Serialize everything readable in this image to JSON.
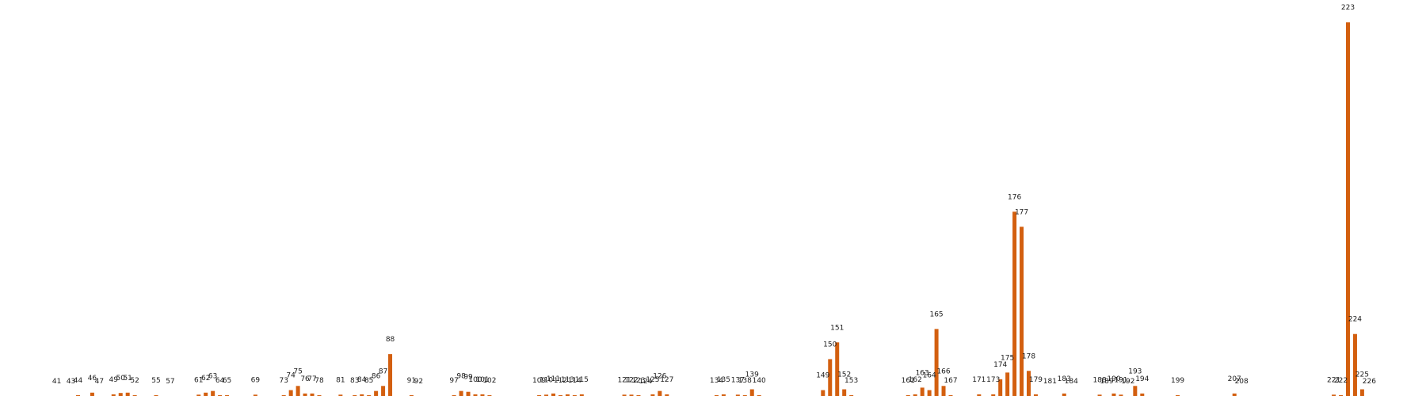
{
  "chart_data": {
    "type": "bar",
    "title": "",
    "xlabel": "",
    "ylabel": "",
    "ylim": [
      0,
      225
    ],
    "xlim": [
      33,
      234
    ],
    "grid": false,
    "axes_visible": false,
    "bar_color": "#d35f0f",
    "points": [
      {
        "x": 41,
        "v": 0
      },
      {
        "x": 43,
        "v": 0
      },
      {
        "x": 44,
        "v": 0.5
      },
      {
        "x": 46,
        "v": 2
      },
      {
        "x": 47,
        "v": 0
      },
      {
        "x": 49,
        "v": 1
      },
      {
        "x": 50,
        "v": 1.8
      },
      {
        "x": 51,
        "v": 2
      },
      {
        "x": 52,
        "v": 0.5
      },
      {
        "x": 55,
        "v": 0.5
      },
      {
        "x": 57,
        "v": 0
      },
      {
        "x": 61,
        "v": 0.8
      },
      {
        "x": 62,
        "v": 2
      },
      {
        "x": 63,
        "v": 3
      },
      {
        "x": 64,
        "v": 0.5
      },
      {
        "x": 65,
        "v": 0.5
      },
      {
        "x": 69,
        "v": 0.8
      },
      {
        "x": 73,
        "v": 0.5
      },
      {
        "x": 74,
        "v": 3.5
      },
      {
        "x": 75,
        "v": 6
      },
      {
        "x": 76,
        "v": 1.5
      },
      {
        "x": 77,
        "v": 1.5
      },
      {
        "x": 78,
        "v": 0.5
      },
      {
        "x": 81,
        "v": 0.8
      },
      {
        "x": 83,
        "v": 0.5
      },
      {
        "x": 84,
        "v": 1
      },
      {
        "x": 85,
        "v": 0.5
      },
      {
        "x": 86,
        "v": 3
      },
      {
        "x": 87,
        "v": 6
      },
      {
        "x": 88,
        "v": 25
      },
      {
        "x": 91,
        "v": 0.5
      },
      {
        "x": 92,
        "v": 0
      },
      {
        "x": 97,
        "v": 0.5
      },
      {
        "x": 98,
        "v": 3
      },
      {
        "x": 99,
        "v": 2.5
      },
      {
        "x": 100,
        "v": 1
      },
      {
        "x": 101,
        "v": 1
      },
      {
        "x": 102,
        "v": 0.5
      },
      {
        "x": 109,
        "v": 0.5
      },
      {
        "x": 110,
        "v": 0.8
      },
      {
        "x": 111,
        "v": 1.5
      },
      {
        "x": 112,
        "v": 0.5
      },
      {
        "x": 113,
        "v": 1
      },
      {
        "x": 114,
        "v": 0.5
      },
      {
        "x": 115,
        "v": 1
      },
      {
        "x": 121,
        "v": 0.8
      },
      {
        "x": 122,
        "v": 0.8
      },
      {
        "x": 123,
        "v": 0.5
      },
      {
        "x": 124,
        "v": 0
      },
      {
        "x": 125,
        "v": 1
      },
      {
        "x": 126,
        "v": 3
      },
      {
        "x": 127,
        "v": 1
      },
      {
        "x": 134,
        "v": 0.5
      },
      {
        "x": 135,
        "v": 1
      },
      {
        "x": 137,
        "v": 0.8
      },
      {
        "x": 138,
        "v": 0.5
      },
      {
        "x": 139,
        "v": 4
      },
      {
        "x": 140,
        "v": 0.5
      },
      {
        "x": 149,
        "v": 3.5
      },
      {
        "x": 150,
        "v": 22
      },
      {
        "x": 151,
        "v": 32
      },
      {
        "x": 152,
        "v": 4
      },
      {
        "x": 153,
        "v": 0.5
      },
      {
        "x": 161,
        "v": 0.5
      },
      {
        "x": 162,
        "v": 1
      },
      {
        "x": 163,
        "v": 5
      },
      {
        "x": 164,
        "v": 3.5
      },
      {
        "x": 165,
        "v": 40
      },
      {
        "x": 166,
        "v": 6
      },
      {
        "x": 167,
        "v": 0.5
      },
      {
        "x": 171,
        "v": 1
      },
      {
        "x": 173,
        "v": 1
      },
      {
        "x": 174,
        "v": 10
      },
      {
        "x": 175,
        "v": 14
      },
      {
        "x": 176,
        "v": 110
      },
      {
        "x": 177,
        "v": 101
      },
      {
        "x": 178,
        "v": 15
      },
      {
        "x": 179,
        "v": 1
      },
      {
        "x": 181,
        "v": 0
      },
      {
        "x": 183,
        "v": 1.5
      },
      {
        "x": 184,
        "v": 0
      },
      {
        "x": 188,
        "v": 0.8
      },
      {
        "x": 189,
        "v": 0
      },
      {
        "x": 190,
        "v": 1.5
      },
      {
        "x": 191,
        "v": 0.8
      },
      {
        "x": 192,
        "v": 0
      },
      {
        "x": 193,
        "v": 6
      },
      {
        "x": 194,
        "v": 1.5
      },
      {
        "x": 199,
        "v": 0.5
      },
      {
        "x": 207,
        "v": 1.5
      },
      {
        "x": 208,
        "v": 0
      },
      {
        "x": 221,
        "v": 0.8
      },
      {
        "x": 222,
        "v": 0.5
      },
      {
        "x": 223,
        "v": 223
      },
      {
        "x": 224,
        "v": 37
      },
      {
        "x": 225,
        "v": 4
      },
      {
        "x": 226,
        "v": 0
      }
    ],
    "labels": [
      "41",
      "43",
      "44",
      "46",
      "47",
      "49",
      "50",
      "51",
      "52",
      "55",
      "57",
      "61",
      "62",
      "63",
      "64",
      "65",
      "69",
      "73",
      "74",
      "75",
      "76",
      "77",
      "78",
      "81",
      "83",
      "84",
      "85",
      "86",
      "87",
      "88",
      "91",
      "92",
      "97",
      "98",
      "99",
      "100",
      "101",
      "102",
      "109",
      "110",
      "111",
      "112",
      "113",
      "114",
      "115",
      "121",
      "122",
      "123",
      "124",
      "125",
      "126",
      "127",
      "134",
      "135",
      "137",
      "138",
      "139",
      "140",
      "149",
      "150",
      "151",
      "152",
      "153",
      "161",
      "162",
      "163",
      "164",
      "165",
      "166",
      "167",
      "171",
      "173",
      "174",
      "175",
      "176",
      "177",
      "178",
      "179",
      "181",
      "183",
      "184",
      "188",
      "189",
      "190",
      "191",
      "192",
      "193",
      "194",
      "199",
      "207",
      "208",
      "221",
      "222",
      "223",
      "224",
      "225",
      "226"
    ]
  }
}
